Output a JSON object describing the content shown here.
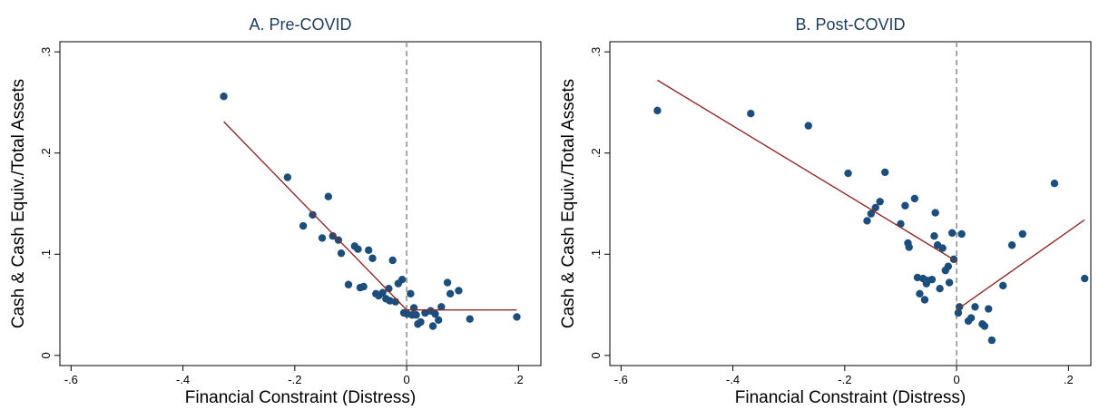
{
  "chart_data": [
    {
      "type": "scatter",
      "title": "A. Pre-COVID",
      "xlabel": "Financial Constraint (Distress)",
      "ylabel": "Cash & Cash Equiv./Total Assets",
      "xlim": [
        -0.62,
        0.24
      ],
      "ylim": [
        -0.01,
        0.31
      ],
      "xticks": [
        -0.6,
        -0.4,
        -0.2,
        0,
        0.2
      ],
      "xtick_labels": [
        "-.6",
        "-.4",
        "-.2",
        "0",
        ".2"
      ],
      "yticks": [
        0,
        0.1,
        0.2,
        0.3
      ],
      "ytick_labels": [
        "0",
        ".1",
        ".2",
        ".3"
      ],
      "grid": false,
      "vline_x": 0,
      "colors": {
        "points": "#1c4e7c",
        "fit": "#8b2c2c",
        "vline": "#8c8c8c",
        "title": "#1e3d5c"
      },
      "points": [
        {
          "x": -0.327,
          "y": 0.256
        },
        {
          "x": -0.213,
          "y": 0.176
        },
        {
          "x": -0.168,
          "y": 0.139
        },
        {
          "x": -0.185,
          "y": 0.128
        },
        {
          "x": -0.14,
          "y": 0.157
        },
        {
          "x": -0.151,
          "y": 0.116
        },
        {
          "x": -0.132,
          "y": 0.118
        },
        {
          "x": -0.122,
          "y": 0.114
        },
        {
          "x": -0.117,
          "y": 0.101
        },
        {
          "x": -0.093,
          "y": 0.108
        },
        {
          "x": -0.087,
          "y": 0.105
        },
        {
          "x": -0.068,
          "y": 0.104
        },
        {
          "x": -0.061,
          "y": 0.096
        },
        {
          "x": -0.025,
          "y": 0.094
        },
        {
          "x": -0.104,
          "y": 0.07
        },
        {
          "x": -0.083,
          "y": 0.067
        },
        {
          "x": -0.077,
          "y": 0.068
        },
        {
          "x": -0.055,
          "y": 0.061
        },
        {
          "x": -0.05,
          "y": 0.059
        },
        {
          "x": -0.043,
          "y": 0.062
        },
        {
          "x": -0.037,
          "y": 0.056
        },
        {
          "x": -0.032,
          "y": 0.066
        },
        {
          "x": -0.03,
          "y": 0.054
        },
        {
          "x": -0.02,
          "y": 0.053
        },
        {
          "x": -0.015,
          "y": 0.071
        },
        {
          "x": -0.008,
          "y": 0.075
        },
        {
          "x": -0.005,
          "y": 0.042
        },
        {
          "x": 0.001,
          "y": 0.041
        },
        {
          "x": 0.007,
          "y": 0.061
        },
        {
          "x": 0.01,
          "y": 0.04
        },
        {
          "x": 0.013,
          "y": 0.047
        },
        {
          "x": 0.017,
          "y": 0.04
        },
        {
          "x": 0.02,
          "y": 0.031
        },
        {
          "x": 0.025,
          "y": 0.033
        },
        {
          "x": 0.033,
          "y": 0.042
        },
        {
          "x": 0.043,
          "y": 0.044
        },
        {
          "x": 0.047,
          "y": 0.029
        },
        {
          "x": 0.051,
          "y": 0.041
        },
        {
          "x": 0.057,
          "y": 0.035
        },
        {
          "x": 0.062,
          "y": 0.048
        },
        {
          "x": 0.073,
          "y": 0.072
        },
        {
          "x": 0.078,
          "y": 0.061
        },
        {
          "x": 0.093,
          "y": 0.064
        },
        {
          "x": 0.113,
          "y": 0.036
        },
        {
          "x": 0.197,
          "y": 0.038
        }
      ],
      "fit_lines": [
        [
          {
            "x": -0.327,
            "y": 0.231
          },
          {
            "x": 0.0,
            "y": 0.045
          }
        ],
        [
          {
            "x": 0.0,
            "y": 0.045
          },
          {
            "x": 0.197,
            "y": 0.045
          }
        ]
      ]
    },
    {
      "type": "scatter",
      "title": "B. Post-COVID",
      "xlabel": "Financial Constraint (Distress)",
      "ylabel": "Cash & Cash Equiv./Total Assets",
      "xlim": [
        -0.62,
        0.24
      ],
      "ylim": [
        -0.01,
        0.31
      ],
      "xticks": [
        -0.6,
        -0.4,
        -0.2,
        0,
        0.2
      ],
      "xtick_labels": [
        "-.6",
        "-.4",
        "-.2",
        "0",
        ".2"
      ],
      "yticks": [
        0,
        0.1,
        0.2,
        0.3
      ],
      "ytick_labels": [
        "0",
        ".1",
        ".2",
        ".3"
      ],
      "grid": false,
      "vline_x": 0,
      "colors": {
        "points": "#1c4e7c",
        "fit": "#8b2c2c",
        "vline": "#8c8c8c",
        "title": "#1e3d5c"
      },
      "points": [
        {
          "x": -0.535,
          "y": 0.242
        },
        {
          "x": -0.368,
          "y": 0.239
        },
        {
          "x": -0.265,
          "y": 0.227
        },
        {
          "x": -0.194,
          "y": 0.18
        },
        {
          "x": -0.128,
          "y": 0.181
        },
        {
          "x": -0.16,
          "y": 0.133
        },
        {
          "x": -0.153,
          "y": 0.14
        },
        {
          "x": -0.145,
          "y": 0.146
        },
        {
          "x": -0.137,
          "y": 0.152
        },
        {
          "x": -0.1,
          "y": 0.13
        },
        {
          "x": -0.092,
          "y": 0.148
        },
        {
          "x": -0.075,
          "y": 0.155
        },
        {
          "x": -0.087,
          "y": 0.111
        },
        {
          "x": -0.085,
          "y": 0.107
        },
        {
          "x": -0.038,
          "y": 0.141
        },
        {
          "x": -0.04,
          "y": 0.118
        },
        {
          "x": -0.034,
          "y": 0.109
        },
        {
          "x": -0.025,
          "y": 0.106
        },
        {
          "x": -0.008,
          "y": 0.121
        },
        {
          "x": 0.009,
          "y": 0.12
        },
        {
          "x": -0.005,
          "y": 0.095
        },
        {
          "x": -0.015,
          "y": 0.088
        },
        {
          "x": -0.02,
          "y": 0.084
        },
        {
          "x": -0.07,
          "y": 0.077
        },
        {
          "x": -0.06,
          "y": 0.076
        },
        {
          "x": -0.052,
          "y": 0.074
        },
        {
          "x": -0.044,
          "y": 0.075
        },
        {
          "x": -0.03,
          "y": 0.066
        },
        {
          "x": -0.066,
          "y": 0.061
        },
        {
          "x": -0.057,
          "y": 0.055
        },
        {
          "x": -0.054,
          "y": 0.071
        },
        {
          "x": -0.013,
          "y": 0.072
        },
        {
          "x": 0.003,
          "y": 0.042
        },
        {
          "x": 0.005,
          "y": 0.048
        },
        {
          "x": 0.021,
          "y": 0.034
        },
        {
          "x": 0.026,
          "y": 0.037
        },
        {
          "x": 0.033,
          "y": 0.048
        },
        {
          "x": 0.046,
          "y": 0.031
        },
        {
          "x": 0.05,
          "y": 0.029
        },
        {
          "x": 0.057,
          "y": 0.046
        },
        {
          "x": 0.063,
          "y": 0.015
        },
        {
          "x": 0.083,
          "y": 0.069
        },
        {
          "x": 0.099,
          "y": 0.109
        },
        {
          "x": 0.118,
          "y": 0.12
        },
        {
          "x": 0.175,
          "y": 0.17
        },
        {
          "x": 0.229,
          "y": 0.076
        }
      ],
      "fit_lines": [
        [
          {
            "x": -0.535,
            "y": 0.272
          },
          {
            "x": 0.0,
            "y": 0.093
          }
        ],
        [
          {
            "x": 0.0,
            "y": 0.045
          },
          {
            "x": 0.229,
            "y": 0.134
          }
        ]
      ]
    }
  ]
}
